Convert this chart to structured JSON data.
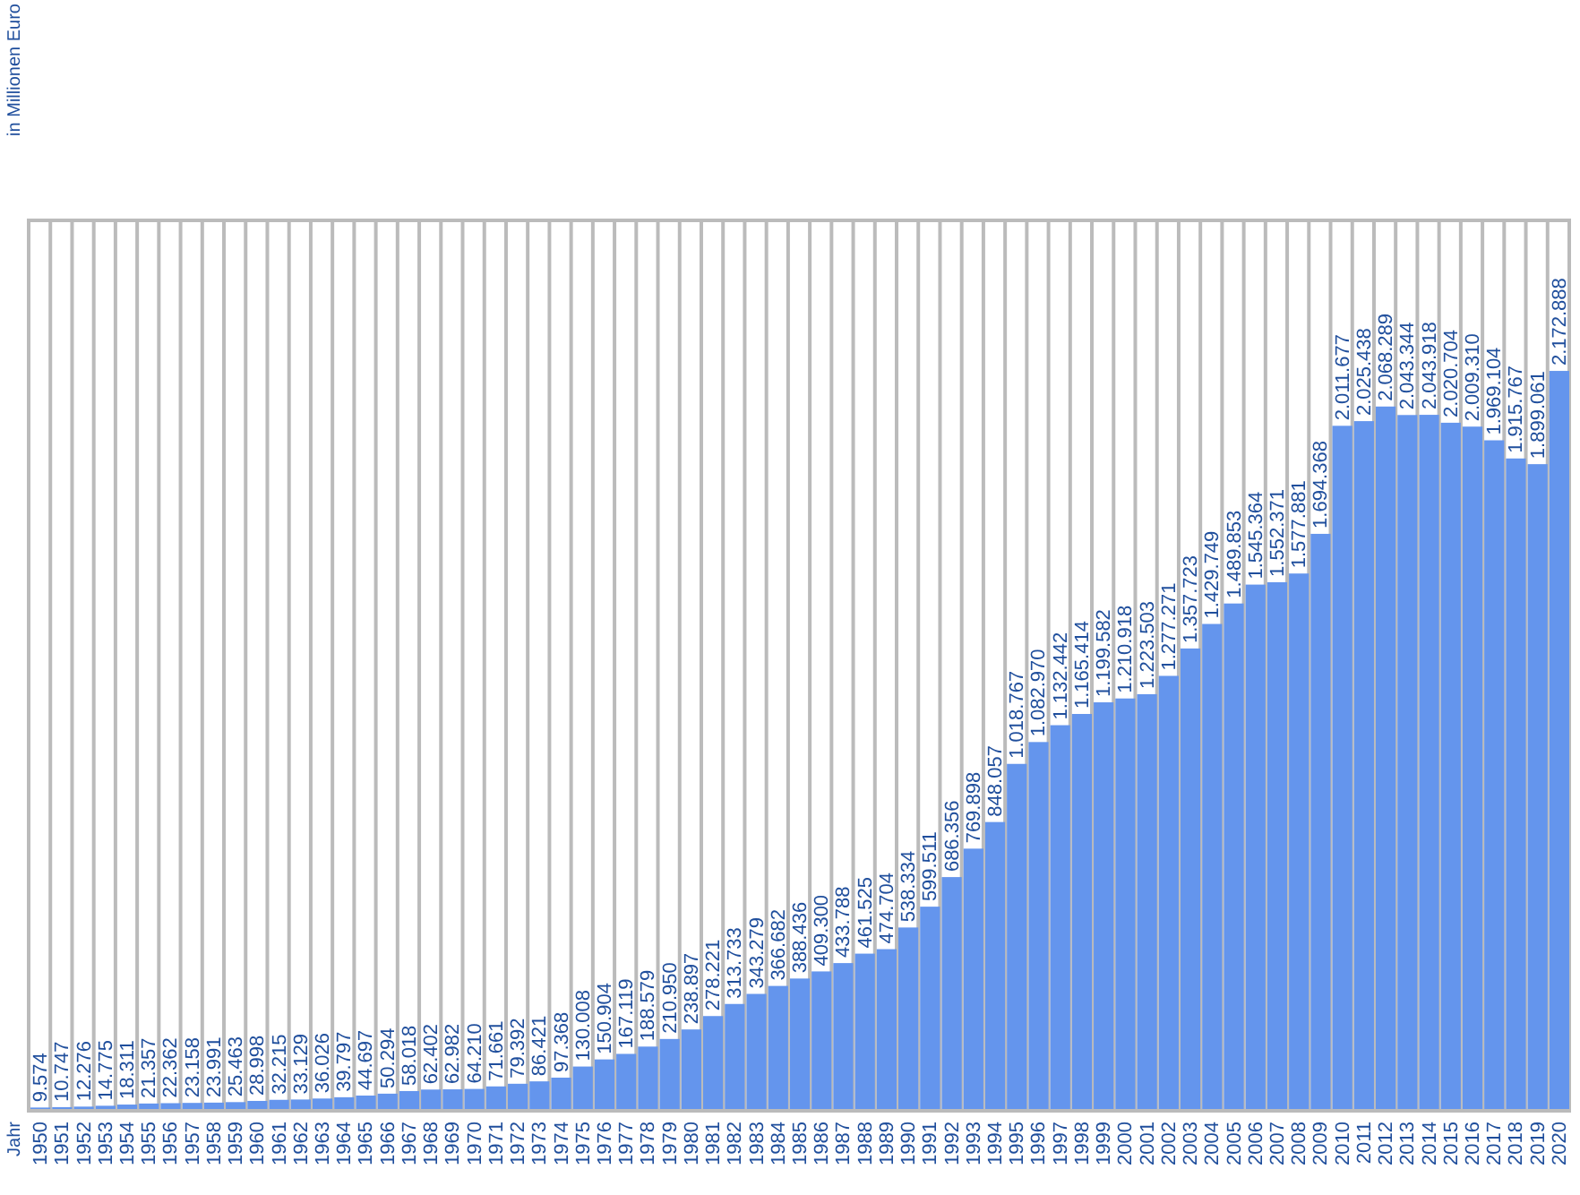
{
  "chart_data": {
    "type": "bar",
    "ylabel": "in Millionen Euro",
    "annotations": [
      "Jahr"
    ],
    "categories": [
      "1950",
      "1951",
      "1952",
      "1953",
      "1954",
      "1955",
      "1956",
      "1957",
      "1958",
      "1959",
      "1960",
      "1961",
      "1962",
      "1963",
      "1964",
      "1965",
      "1966",
      "1967",
      "1968",
      "1969",
      "1970",
      "1971",
      "1972",
      "1973",
      "1974",
      "1975",
      "1976",
      "1977",
      "1978",
      "1979",
      "1980",
      "1981",
      "1982",
      "1983",
      "1984",
      "1985",
      "1986",
      "1987",
      "1988",
      "1989",
      "1990",
      "1991",
      "1992",
      "1993",
      "1994",
      "1995",
      "1996",
      "1997",
      "1998",
      "1999",
      "2000",
      "2001",
      "2002",
      "2003",
      "2004",
      "2005",
      "2006",
      "2007",
      "2008",
      "2009",
      "2010",
      "2011",
      "2012",
      "2013",
      "2014",
      "2015",
      "2016",
      "2017",
      "2018",
      "2019",
      "2020"
    ],
    "values": [
      9574,
      10747,
      12276,
      14775,
      18311,
      21357,
      22362,
      23158,
      23991,
      25463,
      28998,
      32215,
      33129,
      36026,
      39797,
      44697,
      50294,
      58018,
      62402,
      62982,
      64210,
      71661,
      79392,
      86421,
      97368,
      130008,
      150904,
      167119,
      188579,
      210950,
      238897,
      278221,
      313733,
      343279,
      366682,
      388436,
      409300,
      433788,
      461525,
      474704,
      538334,
      599511,
      686356,
      769898,
      848057,
      1018767,
      1082970,
      1132442,
      1165414,
      1199582,
      1210918,
      1223503,
      1277271,
      1357723,
      1429749,
      1489853,
      1545364,
      1552371,
      1577881,
      1694368,
      2011677,
      2025438,
      2068289,
      2043344,
      2043918,
      2020704,
      2009310,
      1969104,
      1915767,
      1899061,
      2172888
    ],
    "value_labels": [
      "9.574",
      "10.747",
      "12.276",
      "14.775",
      "18.311",
      "21.357",
      "22.362",
      "23.158",
      "23.991",
      "25.463",
      "28.998",
      "32.215",
      "33.129",
      "36.026",
      "39.797",
      "44.697",
      "50.294",
      "58.018",
      "62.402",
      "62.982",
      "64.210",
      "71.661",
      "79.392",
      "86.421",
      "97.368",
      "130.008",
      "150.904",
      "167.119",
      "188.579",
      "210.950",
      "238.897",
      "278.221",
      "313.733",
      "343.279",
      "366.682",
      "388.436",
      "409.300",
      "433.788",
      "461.525",
      "474.704",
      "538.334",
      "599.511",
      "686.356",
      "769.898",
      "848.057",
      "1.018.767",
      "1.082.970",
      "1.132.442",
      "1.165.414",
      "1.199.582",
      "1.210.918",
      "1.223.503",
      "1.277.271",
      "1.357.723",
      "1.429.749",
      "1.489.853",
      "1.545.364",
      "1.552.371",
      "1.577.881",
      "1.694.368",
      "2.011.677",
      "2.025.438",
      "2.068.289",
      "2.043.344",
      "2.043.918",
      "2.020.704",
      "2.009.310",
      "1.969.104",
      "1.915.767",
      "1.899.061",
      "2.172.888"
    ],
    "color": "#6495ed",
    "ylim": [
      0,
      2615000
    ],
    "grid": "x",
    "legend": false
  }
}
